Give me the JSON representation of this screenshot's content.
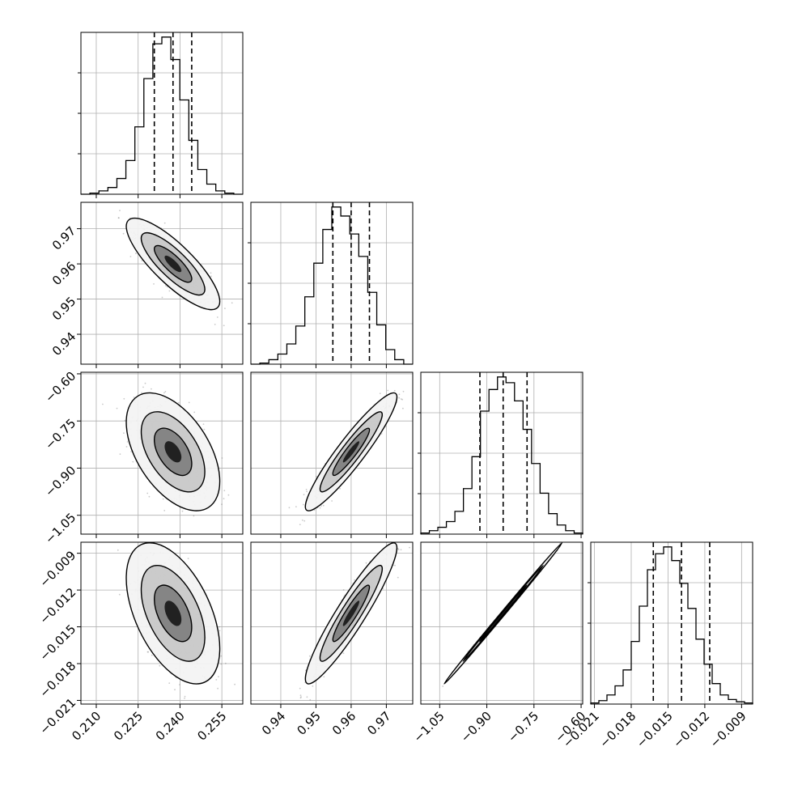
{
  "chart_data": {
    "type": "corner",
    "parameters": [
      {
        "range": [
          0.2045,
          0.2625
        ],
        "ticks": [
          0.21,
          0.225,
          0.24,
          0.255
        ],
        "tick_labels": [
          "0.210",
          "0.225",
          "0.240",
          "0.255"
        ],
        "quantiles": [
          0.2308,
          0.2375,
          0.2442
        ],
        "histogram": [
          0,
          1,
          3,
          6,
          14,
          30,
          60,
          103,
          134,
          140,
          120,
          84,
          48,
          22,
          9,
          3,
          1,
          0
        ]
      },
      {
        "range": [
          0.9315,
          0.9775
        ],
        "ticks": [
          0.94,
          0.95,
          0.96,
          0.97
        ],
        "tick_labels": [
          "0.94",
          "0.95",
          "0.96",
          "0.97"
        ],
        "quantiles": [
          0.9548,
          0.96,
          0.9652
        ],
        "histogram": [
          0,
          1,
          4,
          9,
          18,
          34,
          60,
          90,
          120,
          140,
          132,
          116,
          96,
          64,
          35,
          13,
          4,
          0
        ]
      },
      {
        "range": [
          -1.11,
          -0.595
        ],
        "ticks": [
          -1.05,
          -0.9,
          -0.75,
          -0.6
        ],
        "tick_labels": [
          "−1.05",
          "−0.90",
          "−0.75",
          "−0.60"
        ],
        "quantiles": [
          -0.922,
          -0.848,
          -0.772
        ],
        "histogram": [
          1,
          3,
          6,
          11,
          20,
          40,
          68,
          108,
          127,
          138,
          133,
          117,
          92,
          62,
          36,
          18,
          8,
          3,
          1
        ]
      },
      {
        "range": [
          -0.0213,
          -0.0081
        ],
        "ticks": [
          -0.021,
          -0.018,
          -0.015,
          -0.012,
          -0.009
        ],
        "tick_labels": [
          "−0.021",
          "−0.018",
          "−0.015",
          "−0.012",
          "−0.009"
        ],
        "quantiles": [
          -0.0162,
          -0.0139,
          -0.0116
        ],
        "histogram": [
          1,
          3,
          8,
          16,
          30,
          55,
          86,
          118,
          132,
          138,
          126,
          106,
          84,
          57,
          35,
          18,
          8,
          4,
          2,
          1
        ]
      }
    ],
    "pairs": [
      {
        "i": 1,
        "j": 0,
        "mean": [
          0.2375,
          0.96
        ],
        "sd": [
          0.0067,
          0.0052
        ],
        "corr": -0.82
      },
      {
        "i": 2,
        "j": 0,
        "mean": [
          0.2375,
          -0.848
        ],
        "sd": [
          0.0067,
          0.075
        ],
        "corr": -0.5
      },
      {
        "i": 2,
        "j": 1,
        "mean": [
          0.96,
          -0.848
        ],
        "sd": [
          0.0052,
          0.075
        ],
        "corr": 0.93
      },
      {
        "i": 3,
        "j": 0,
        "mean": [
          0.2375,
          -0.0139
        ],
        "sd": [
          0.0067,
          0.0023
        ],
        "corr": -0.5
      },
      {
        "i": 3,
        "j": 1,
        "mean": [
          0.96,
          -0.0139
        ],
        "sd": [
          0.0052,
          0.0023
        ],
        "corr": 0.93
      },
      {
        "i": 3,
        "j": 2,
        "mean": [
          -0.848,
          -0.0139
        ],
        "sd": [
          0.075,
          0.0023
        ],
        "corr": 0.999
      }
    ],
    "grid": true,
    "colors": {
      "frame": "#000000",
      "grid": "#b0b0b0",
      "points": "#666666",
      "levels": [
        "#f3f3f3",
        "#bdbdbd",
        "#6e6e6e",
        "#000000"
      ]
    }
  }
}
